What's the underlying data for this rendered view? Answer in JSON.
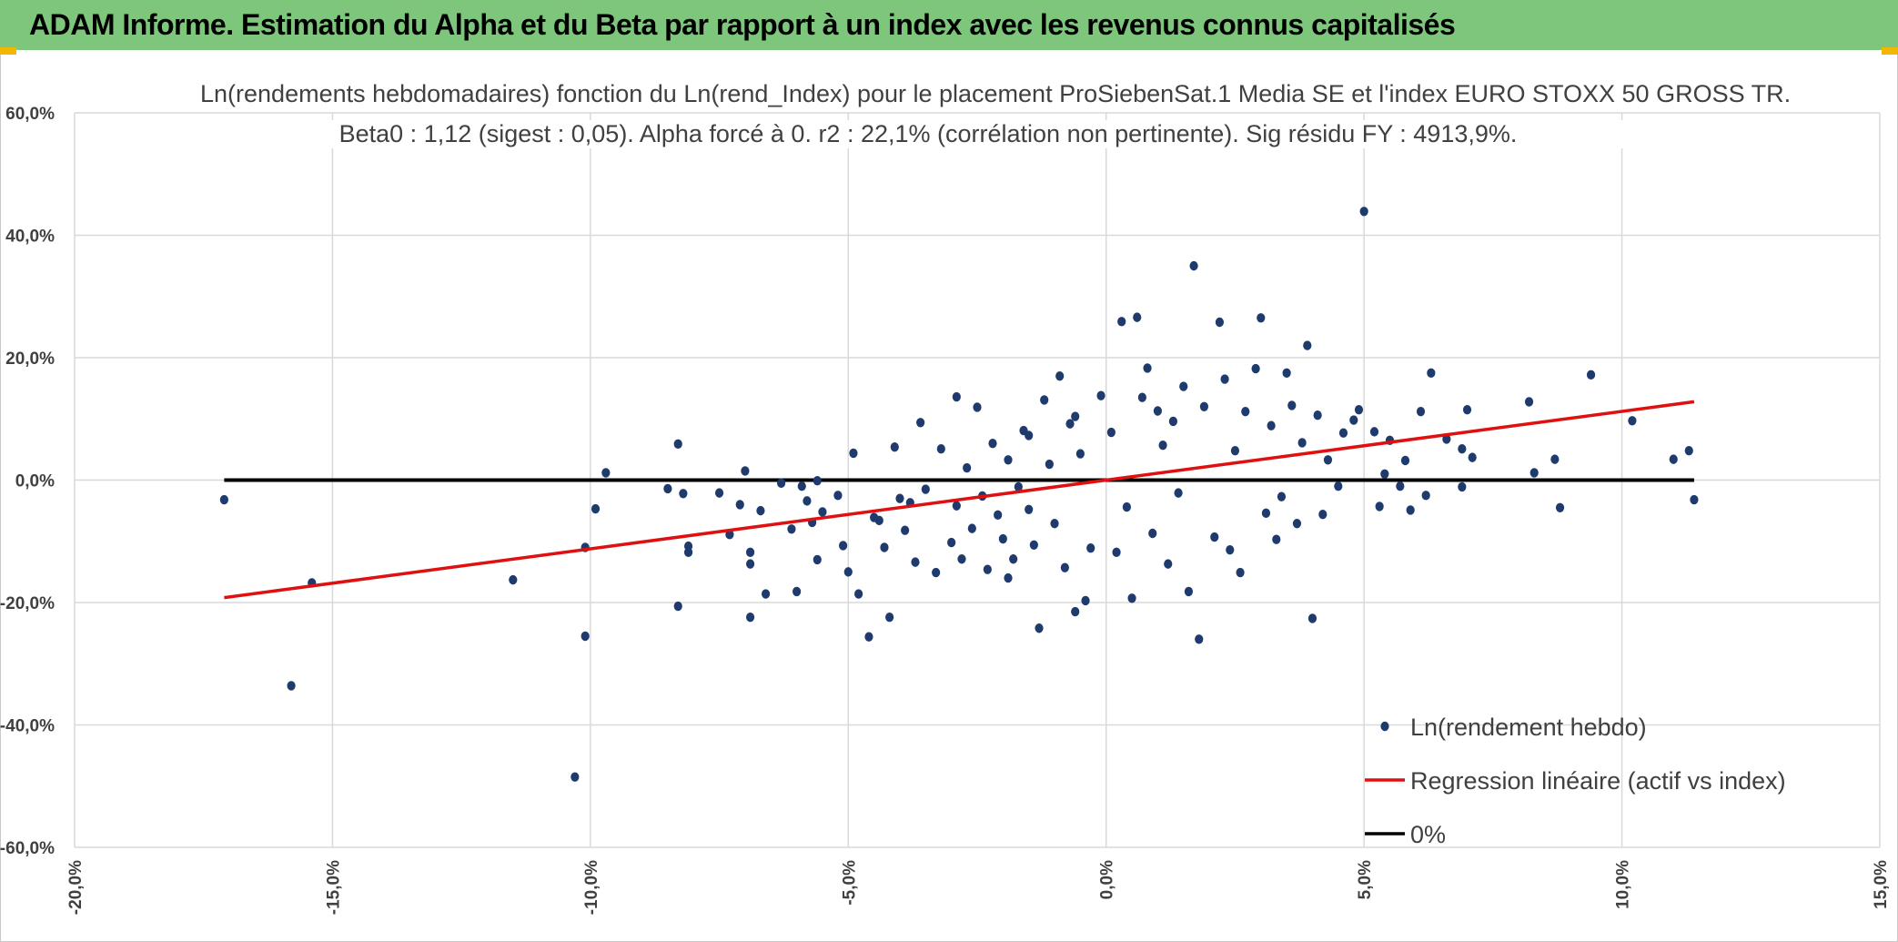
{
  "header": {
    "title": "ADAM Informe. Estimation du Alpha et du Beta par rapport à un index avec les revenus connus capitalisés"
  },
  "colors": {
    "banner": "#7dc67b",
    "points": "#1f3b6e",
    "regression": "#e01010",
    "zero_line": "#000000",
    "grid": "#d9d9d9"
  },
  "chart_data": {
    "type": "scatter",
    "title_line1": "Ln(rendements hebdomadaires) fonction du Ln(rend_Index) pour le placement ProSiebenSat.1 Media SE et l'index EURO STOXX 50 GROSS TR.",
    "title_line2": "Beta0 : 1,12 (sigest : 0,05). Alpha forcé à 0. r2 : 22,1% (corrélation non pertinente). Sig résidu FY : 4913,9%.",
    "xlim": [
      -20,
      15
    ],
    "ylim": [
      -60,
      60
    ],
    "x_ticks": [
      -20,
      -15,
      -10,
      -5,
      0,
      5,
      10,
      15
    ],
    "y_ticks": [
      60,
      40,
      20,
      0,
      -20,
      -40,
      -60
    ],
    "x_tick_labels": [
      "-20,0%",
      "-15,0%",
      "-10,0%",
      "-5,0%",
      "0,0%",
      "5,0%",
      "10,0%",
      "15,0%"
    ],
    "y_tick_labels": [
      "60,0%",
      "40,0%",
      "20,0%",
      "0,0%",
      "-20,0%",
      "-40,0%",
      "-60,0%"
    ],
    "grid": true,
    "legend_position": "bottom-right",
    "series": [
      {
        "name": "Ln(rendement hebdo)",
        "kind": "scatter",
        "points": [
          [
            -17.1,
            -3.2
          ],
          [
            -15.8,
            -33.6
          ],
          [
            -15.4,
            -16.8
          ],
          [
            -11.5,
            -16.3
          ],
          [
            -10.3,
            -48.5
          ],
          [
            -10.1,
            -25.5
          ],
          [
            -10.1,
            -11.0
          ],
          [
            -9.9,
            -4.7
          ],
          [
            -9.7,
            1.2
          ],
          [
            -8.5,
            -1.4
          ],
          [
            -8.3,
            5.9
          ],
          [
            -8.2,
            -2.2
          ],
          [
            -8.3,
            -20.6
          ],
          [
            -8.1,
            -10.8
          ],
          [
            -8.1,
            -11.8
          ],
          [
            -7.5,
            -2.1
          ],
          [
            -7.3,
            -8.9
          ],
          [
            -7.1,
            -4.0
          ],
          [
            -7.0,
            1.5
          ],
          [
            -6.9,
            -11.8
          ],
          [
            -6.9,
            -13.7
          ],
          [
            -6.9,
            -22.4
          ],
          [
            -6.7,
            -5.0
          ],
          [
            -6.6,
            -18.6
          ],
          [
            -6.3,
            -0.5
          ],
          [
            -6.1,
            -8.0
          ],
          [
            -6.0,
            -18.2
          ],
          [
            -5.9,
            -1.0
          ],
          [
            -5.8,
            -3.4
          ],
          [
            -5.7,
            -6.9
          ],
          [
            -5.6,
            -13.0
          ],
          [
            -5.6,
            -0.1
          ],
          [
            -5.5,
            -5.2
          ],
          [
            -5.2,
            -2.5
          ],
          [
            -5.1,
            -10.7
          ],
          [
            -5.0,
            -15.0
          ],
          [
            -4.9,
            4.4
          ],
          [
            -4.8,
            -18.6
          ],
          [
            -4.6,
            -25.6
          ],
          [
            -4.5,
            -6.1
          ],
          [
            -4.3,
            -11.0
          ],
          [
            -4.2,
            -22.4
          ],
          [
            -4.1,
            5.4
          ],
          [
            -4.0,
            -3.0
          ],
          [
            -3.9,
            -8.2
          ],
          [
            -3.7,
            -13.4
          ],
          [
            -3.6,
            9.4
          ],
          [
            -3.5,
            -1.5
          ],
          [
            -3.3,
            -15.1
          ],
          [
            -3.2,
            5.1
          ],
          [
            -3.0,
            -10.2
          ],
          [
            -2.9,
            13.6
          ],
          [
            -2.8,
            -12.9
          ],
          [
            -2.7,
            2.0
          ],
          [
            -2.6,
            -7.9
          ],
          [
            -2.5,
            11.9
          ],
          [
            -2.4,
            -2.6
          ],
          [
            -2.3,
            -14.6
          ],
          [
            -2.2,
            6.0
          ],
          [
            -2.1,
            -5.7
          ],
          [
            -2.0,
            -9.6
          ],
          [
            -1.9,
            3.3
          ],
          [
            -1.8,
            -12.9
          ],
          [
            -1.7,
            -1.1
          ],
          [
            -1.6,
            8.1
          ],
          [
            -1.5,
            -4.8
          ],
          [
            -1.4,
            -10.6
          ],
          [
            -1.3,
            -24.2
          ],
          [
            -1.2,
            13.1
          ],
          [
            -1.1,
            2.6
          ],
          [
            -1.0,
            -7.1
          ],
          [
            -0.9,
            17.0
          ],
          [
            -0.8,
            -14.3
          ],
          [
            -0.7,
            9.2
          ],
          [
            -0.6,
            -21.5
          ],
          [
            -0.5,
            4.3
          ],
          [
            -0.4,
            -19.7
          ],
          [
            -0.3,
            -11.1
          ],
          [
            0.1,
            7.8
          ],
          [
            0.3,
            25.9
          ],
          [
            0.4,
            -4.4
          ],
          [
            0.5,
            -19.3
          ],
          [
            0.6,
            26.6
          ],
          [
            0.7,
            13.5
          ],
          [
            0.8,
            18.3
          ],
          [
            0.9,
            -8.7
          ],
          [
            1.0,
            11.3
          ],
          [
            1.1,
            5.7
          ],
          [
            1.2,
            -13.7
          ],
          [
            1.3,
            9.6
          ],
          [
            1.4,
            -2.1
          ],
          [
            1.5,
            15.3
          ],
          [
            1.7,
            35.0
          ],
          [
            1.8,
            -26.0
          ],
          [
            1.9,
            12.0
          ],
          [
            2.1,
            -9.3
          ],
          [
            2.2,
            25.8
          ],
          [
            2.3,
            16.5
          ],
          [
            2.5,
            4.8
          ],
          [
            2.6,
            -15.1
          ],
          [
            2.7,
            11.2
          ],
          [
            2.9,
            18.2
          ],
          [
            3.0,
            26.5
          ],
          [
            3.1,
            -5.4
          ],
          [
            3.2,
            8.9
          ],
          [
            3.4,
            -2.7
          ],
          [
            3.5,
            17.5
          ],
          [
            3.6,
            12.2
          ],
          [
            3.7,
            -7.1
          ],
          [
            3.8,
            6.1
          ],
          [
            3.9,
            22.0
          ],
          [
            4.0,
            -22.6
          ],
          [
            4.1,
            10.6
          ],
          [
            4.2,
            -5.6
          ],
          [
            4.3,
            3.3
          ],
          [
            4.5,
            -1.0
          ],
          [
            4.6,
            7.7
          ],
          [
            4.8,
            9.8
          ],
          [
            4.9,
            11.5
          ],
          [
            5.0,
            43.9
          ],
          [
            5.2,
            7.9
          ],
          [
            5.3,
            -4.3
          ],
          [
            5.4,
            1.0
          ],
          [
            5.5,
            6.5
          ],
          [
            5.7,
            -1.0
          ],
          [
            5.8,
            3.2
          ],
          [
            5.9,
            -4.9
          ],
          [
            6.1,
            11.2
          ],
          [
            6.2,
            -2.5
          ],
          [
            6.3,
            17.5
          ],
          [
            6.6,
            6.7
          ],
          [
            6.9,
            5.1
          ],
          [
            6.9,
            -1.1
          ],
          [
            7.0,
            11.5
          ],
          [
            7.1,
            3.7
          ],
          [
            8.2,
            12.8
          ],
          [
            8.3,
            1.2
          ],
          [
            8.7,
            3.4
          ],
          [
            8.8,
            -4.5
          ],
          [
            9.4,
            17.2
          ],
          [
            10.2,
            9.7
          ],
          [
            11.0,
            3.4
          ],
          [
            11.3,
            4.8
          ],
          [
            11.4,
            -3.2
          ],
          [
            -1.9,
            -16.0
          ],
          [
            -3.8,
            -3.7
          ],
          [
            -4.4,
            -6.6
          ],
          [
            -2.9,
            -4.2
          ],
          [
            -0.1,
            13.8
          ],
          [
            0.2,
            -11.8
          ],
          [
            1.6,
            -18.2
          ],
          [
            2.4,
            -11.4
          ],
          [
            3.3,
            -9.7
          ],
          [
            -0.6,
            10.4
          ],
          [
            -1.5,
            7.3
          ]
        ]
      },
      {
        "name": "Regression linéaire (actif vs index)",
        "kind": "line",
        "x": [
          -17.1,
          11.4
        ],
        "y": [
          -19.2,
          12.8
        ]
      },
      {
        "name": "0%",
        "kind": "line",
        "x": [
          -17.1,
          11.4
        ],
        "y": [
          0,
          0
        ]
      }
    ],
    "legend": [
      {
        "label": "Ln(rendement hebdo)",
        "marker": "point"
      },
      {
        "label": "Regression linéaire (actif vs index)",
        "marker": "red-line"
      },
      {
        "label": "0%",
        "marker": "black-line"
      }
    ]
  }
}
